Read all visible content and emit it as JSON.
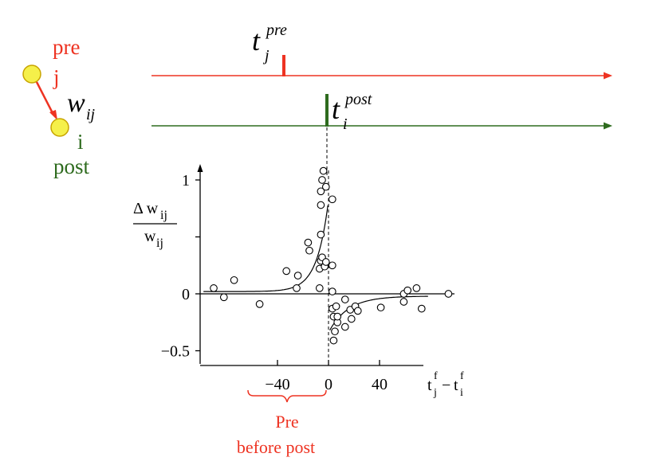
{
  "colors": {
    "pre": "#ee3322",
    "post": "#2e6b1e",
    "neuron_fill": "#f5f04a",
    "neuron_stroke": "#c8a400",
    "axis": "#000000"
  },
  "neurons": {
    "pre_label": "pre",
    "pre_index": "j",
    "post_index": "i",
    "post_label": "post",
    "weight_symbol": "w",
    "weight_subscript": "ij"
  },
  "spike_trains": {
    "pre_symbol": "t",
    "pre_subscript": "j",
    "pre_superscript": "pre",
    "post_symbol": "t",
    "post_subscript": "i",
    "post_superscript": "post"
  },
  "annotation": {
    "line1": "Pre",
    "line2": "before post"
  },
  "chart_data": {
    "type": "scatter",
    "ylabel_numerator": "Δ w",
    "ylabel_numerator_sub": "ij",
    "ylabel_denominator": "w",
    "ylabel_denominator_sub": "ij",
    "xlabel": "t",
    "xlabel_left_sub": "j",
    "xlabel_left_sup": "f",
    "xlabel_minus": "−",
    "xlabel_right_sub": "i",
    "xlabel_right_sup": "f",
    "x_ticks": [
      {
        "value": -40,
        "label": "−40"
      },
      {
        "value": 0,
        "label": "0"
      },
      {
        "value": 40,
        "label": "40"
      }
    ],
    "y_ticks": [
      {
        "value": 1,
        "label": "1"
      },
      {
        "value": 0.5,
        "label": ""
      },
      {
        "value": 0,
        "label": "0"
      },
      {
        "value": -0.5,
        "label": "−0.5"
      }
    ],
    "xlim": [
      -100,
      80
    ],
    "ylim": [
      -0.65,
      1.1
    ],
    "points": [
      [
        -90,
        0.05
      ],
      [
        -82,
        -0.03
      ],
      [
        -74,
        0.12
      ],
      [
        -54,
        -0.09
      ],
      [
        -33,
        0.2
      ],
      [
        -25,
        0.05
      ],
      [
        -24,
        0.16
      ],
      [
        -16,
        0.45
      ],
      [
        -15,
        0.38
      ],
      [
        -7,
        0.22
      ],
      [
        -7,
        0.05
      ],
      [
        -6,
        0.29
      ],
      [
        -6,
        0.52
      ],
      [
        -6,
        0.78
      ],
      [
        -6,
        0.9
      ],
      [
        -5,
        0.32
      ],
      [
        -5,
        1.0
      ],
      [
        -4,
        1.08
      ],
      [
        -3,
        0.24
      ],
      [
        -2,
        0.28
      ],
      [
        -2,
        0.94
      ],
      [
        3,
        0.83
      ],
      [
        3,
        0.25
      ],
      [
        3,
        0.02
      ],
      [
        3,
        -0.13
      ],
      [
        4,
        -0.2
      ],
      [
        4,
        -0.41
      ],
      [
        5,
        -0.33
      ],
      [
        6,
        -0.11
      ],
      [
        7,
        -0.25
      ],
      [
        7,
        -0.2
      ],
      [
        13,
        -0.29
      ],
      [
        13,
        -0.05
      ],
      [
        17,
        -0.14
      ],
      [
        18,
        -0.22
      ],
      [
        21,
        -0.11
      ],
      [
        23,
        -0.15
      ],
      [
        41,
        -0.12
      ],
      [
        59,
        0.0
      ],
      [
        59,
        -0.07
      ],
      [
        62,
        0.03
      ],
      [
        69,
        0.05
      ],
      [
        73,
        -0.13
      ],
      [
        94,
        0.0
      ]
    ],
    "fit_ltp": {
      "amplitude": 0.8,
      "tau": 9,
      "offset": 0.02
    },
    "fit_ltd": {
      "amplitude": -0.32,
      "tau": 15,
      "offset": -0.02
    }
  }
}
